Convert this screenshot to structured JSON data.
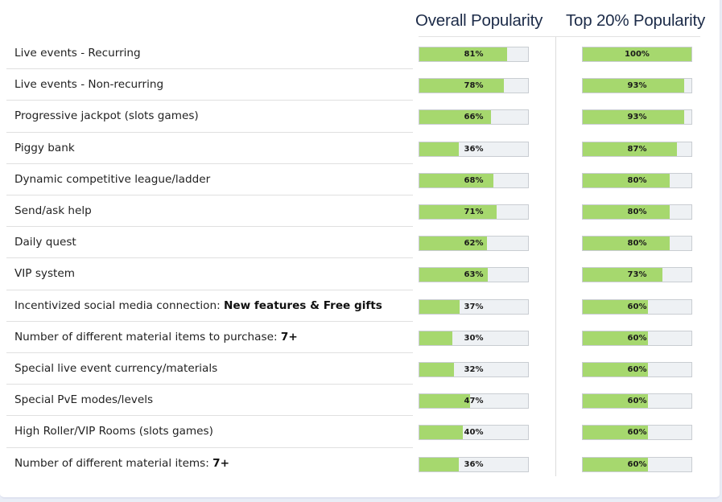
{
  "chart_data": {
    "type": "bar",
    "orientation": "horizontal",
    "columns": [
      "Overall Popularity",
      "Top 20% Popularity"
    ],
    "unit": "%",
    "xlim": [
      0,
      100
    ],
    "categories": [
      {
        "label": "Live events - Recurring",
        "suffix": ""
      },
      {
        "label": "Live events - Non-recurring",
        "suffix": ""
      },
      {
        "label": "Progressive jackpot (slots games)",
        "suffix": ""
      },
      {
        "label": "Piggy bank",
        "suffix": ""
      },
      {
        "label": "Dynamic competitive league/ladder",
        "suffix": ""
      },
      {
        "label": "Send/ask help",
        "suffix": ""
      },
      {
        "label": "Daily quest",
        "suffix": ""
      },
      {
        "label": "VIP system",
        "suffix": ""
      },
      {
        "label": "Incentivized social media connection: ",
        "suffix": "New features & Free gifts"
      },
      {
        "label": "Number of different material items to purchase: ",
        "suffix": "7+"
      },
      {
        "label": "Special live event currency/materials",
        "suffix": ""
      },
      {
        "label": "Special PvE modes/levels",
        "suffix": ""
      },
      {
        "label": "High Roller/VIP Rooms (slots games)",
        "suffix": ""
      },
      {
        "label": "Number of different material items: ",
        "suffix": "7+"
      }
    ],
    "series": [
      {
        "name": "Overall Popularity",
        "values": [
          81,
          78,
          66,
          36,
          68,
          71,
          62,
          63,
          37,
          30,
          32,
          47,
          40,
          36
        ]
      },
      {
        "name": "Top 20% Popularity",
        "values": [
          100,
          93,
          93,
          87,
          80,
          80,
          80,
          73,
          60,
          60,
          60,
          60,
          60,
          60
        ]
      }
    ],
    "colors": {
      "bar_fill": "#a6d86e",
      "bar_track": "#eef1f4",
      "header_text": "#1c2b48"
    }
  }
}
